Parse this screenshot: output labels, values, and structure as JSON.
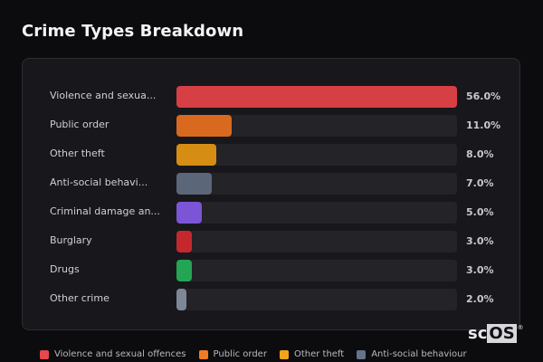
{
  "header": {
    "title": "Crime Types Breakdown"
  },
  "chart_data": {
    "type": "bar",
    "orientation": "horizontal",
    "title": "Crime Types Breakdown",
    "xlabel": "",
    "ylabel": "",
    "xlim": [
      0,
      56
    ],
    "categories": [
      "Violence and sexual offences",
      "Public order",
      "Other theft",
      "Anti-social behaviour",
      "Criminal damage and arson",
      "Burglary",
      "Drugs",
      "Other crime"
    ],
    "display_labels": [
      "Violence and sexua...",
      "Public order",
      "Other theft",
      "Anti-social behavi...",
      "Criminal damage an...",
      "Burglary",
      "Drugs",
      "Other crime"
    ],
    "values": [
      56.0,
      11.0,
      8.0,
      7.0,
      5.0,
      3.0,
      3.0,
      2.0
    ],
    "value_labels": [
      "56.0%",
      "11.0%",
      "8.0%",
      "7.0%",
      "5.0%",
      "3.0%",
      "3.0%",
      "2.0%"
    ],
    "colors": [
      "#d64045",
      "#d9691f",
      "#d68d14",
      "#5b6678",
      "#7c55d6",
      "#c4282d",
      "#23a553",
      "#7e8796"
    ],
    "legend_position": "bottom",
    "grid": false
  },
  "legend": {
    "items": [
      {
        "label": "Violence and sexual offences",
        "color": "#e5484d"
      },
      {
        "label": "Public order",
        "color": "#f07b24"
      },
      {
        "label": "Other theft",
        "color": "#f2a31b"
      },
      {
        "label": "Anti-social behaviour",
        "color": "#64748b"
      }
    ]
  },
  "watermark": {
    "prefix": "sc",
    "boxed": "OS",
    "mark": "®"
  }
}
